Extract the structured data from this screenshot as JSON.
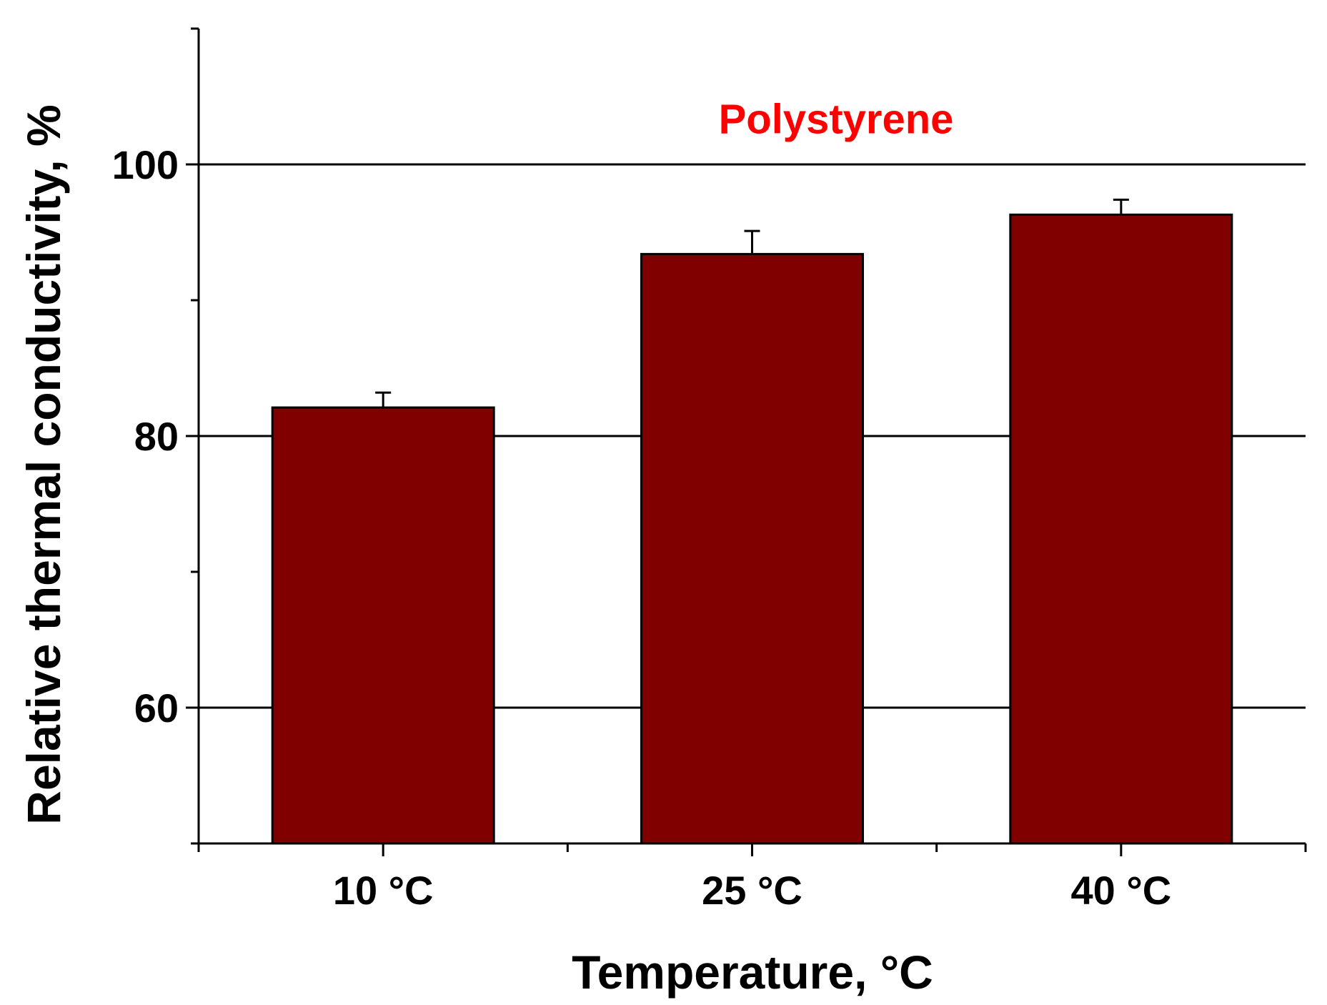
{
  "chart_data": {
    "type": "bar",
    "categories": [
      "10 °C",
      "25 °C",
      "40 °C"
    ],
    "values": [
      82.1,
      93.4,
      96.3
    ],
    "errors": [
      1.1,
      1.7,
      1.1
    ],
    "xlabel": "Temperature, °C",
    "ylabel": "Relative thermal conductivity, %",
    "ylim": [
      50,
      110
    ],
    "yticks_major": [
      60,
      80,
      100
    ],
    "yticks_minor": [
      50,
      70,
      90,
      110
    ],
    "grid_lines_y": [
      60,
      80,
      100
    ],
    "annotation": {
      "text": "Polystyrene",
      "y": 102.3,
      "color": "#ff0000"
    },
    "bar_color": "#800000",
    "bar_edge_color": "#000000"
  }
}
